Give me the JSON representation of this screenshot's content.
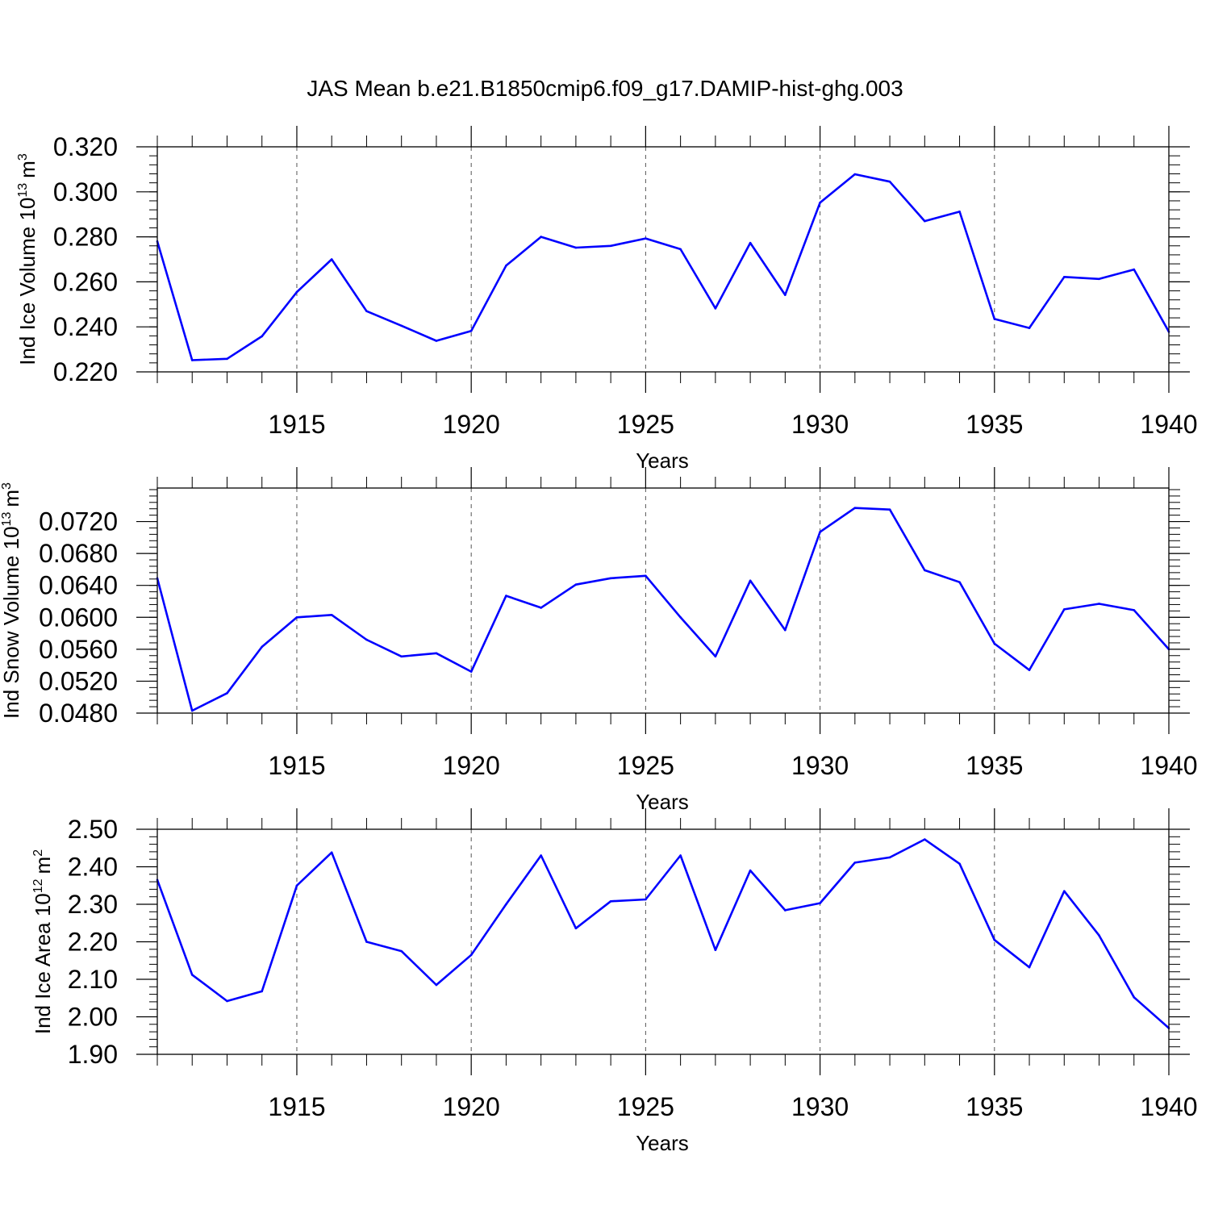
{
  "title": "JAS Mean b.e21.B1850cmip6.f09_g17.DAMIP-hist-ghg.003",
  "colors": {
    "line": "#0000ff",
    "axis": "#000000"
  },
  "chart_data": [
    {
      "type": "line",
      "ylabel_main": "Ind Ice Volume 10",
      "ylabel_exp": "13",
      "ylabel_unit": "m",
      "ylabel_unit_exp": "3",
      "xlabel": "Years",
      "xlim": [
        1911,
        1940
      ],
      "ylim": [
        0.22,
        0.32
      ],
      "yticks": [
        0.22,
        0.24,
        0.26,
        0.28,
        0.3,
        0.32
      ],
      "ytick_labels": [
        "0.220",
        "0.240",
        "0.260",
        "0.280",
        "0.300",
        "0.320"
      ],
      "yminor_step": 0.004,
      "xticks": [
        1915,
        1920,
        1925,
        1930,
        1935,
        1940
      ],
      "xtick_labels": [
        "1915",
        "1920",
        "1925",
        "1930",
        "1935",
        "1940"
      ],
      "x": [
        1911,
        1912,
        1913,
        1914,
        1915,
        1916,
        1917,
        1918,
        1919,
        1920,
        1921,
        1922,
        1923,
        1924,
        1925,
        1926,
        1927,
        1928,
        1929,
        1930,
        1931,
        1932,
        1933,
        1934,
        1935,
        1936,
        1937,
        1938,
        1939,
        1940
      ],
      "values": [
        0.278,
        0.2252,
        0.2258,
        0.2358,
        0.2555,
        0.27,
        0.247,
        0.2405,
        0.2338,
        0.2382,
        0.2672,
        0.28,
        0.2752,
        0.276,
        0.2793,
        0.2745,
        0.2482,
        0.2773,
        0.2542,
        0.2952,
        0.3078,
        0.3045,
        0.287,
        0.2912,
        0.2435,
        0.2395,
        0.2622,
        0.2613,
        0.2655,
        0.2378
      ]
    },
    {
      "type": "line",
      "ylabel_main": "Ind Snow Volume 10",
      "ylabel_exp": "13",
      "ylabel_unit": "m",
      "ylabel_unit_exp": "3",
      "xlabel": "Years",
      "xlim": [
        1911,
        1940
      ],
      "ylim": [
        0.048,
        0.0762
      ],
      "yticks": [
        0.048,
        0.052,
        0.056,
        0.06,
        0.064,
        0.068,
        0.072
      ],
      "ytick_labels": [
        "0.0480",
        "0.0520",
        "0.0560",
        "0.0600",
        "0.0640",
        "0.0680",
        "0.0720"
      ],
      "yminor_step": 0.0008,
      "xticks": [
        1915,
        1920,
        1925,
        1930,
        1935,
        1940
      ],
      "xtick_labels": [
        "1915",
        "1920",
        "1925",
        "1930",
        "1935",
        "1940"
      ],
      "x": [
        1911,
        1912,
        1913,
        1914,
        1915,
        1916,
        1917,
        1918,
        1919,
        1920,
        1921,
        1922,
        1923,
        1924,
        1925,
        1926,
        1927,
        1928,
        1929,
        1930,
        1931,
        1932,
        1933,
        1934,
        1935,
        1936,
        1937,
        1938,
        1939,
        1940
      ],
      "values": [
        0.0649,
        0.0483,
        0.0505,
        0.0563,
        0.06,
        0.0603,
        0.0572,
        0.0551,
        0.0555,
        0.0532,
        0.0627,
        0.0612,
        0.0641,
        0.0649,
        0.0652,
        0.06,
        0.0551,
        0.0646,
        0.0584,
        0.0707,
        0.0737,
        0.0735,
        0.0659,
        0.0644,
        0.0567,
        0.0534,
        0.061,
        0.0617,
        0.0609,
        0.056
      ]
    },
    {
      "type": "line",
      "ylabel_main": "Ind Ice Area 10",
      "ylabel_exp": "12",
      "ylabel_unit": "m",
      "ylabel_unit_exp": "2",
      "xlabel": "Years",
      "xlim": [
        1911,
        1940
      ],
      "ylim": [
        1.9,
        2.5
      ],
      "yticks": [
        1.9,
        2.0,
        2.1,
        2.2,
        2.3,
        2.4,
        2.5
      ],
      "ytick_labels": [
        "1.90",
        "2.00",
        "2.10",
        "2.20",
        "2.30",
        "2.40",
        "2.50"
      ],
      "yminor_step": 0.02,
      "xticks": [
        1915,
        1920,
        1925,
        1930,
        1935,
        1940
      ],
      "xtick_labels": [
        "1915",
        "1920",
        "1925",
        "1930",
        "1935",
        "1940"
      ],
      "x": [
        1911,
        1912,
        1913,
        1914,
        1915,
        1916,
        1917,
        1918,
        1919,
        1920,
        1921,
        1922,
        1923,
        1924,
        1925,
        1926,
        1927,
        1928,
        1929,
        1930,
        1931,
        1932,
        1933,
        1934,
        1935,
        1936,
        1937,
        1938,
        1939,
        1940
      ],
      "values": [
        2.365,
        2.112,
        2.042,
        2.068,
        2.35,
        2.438,
        2.2,
        2.175,
        2.085,
        2.165,
        2.3,
        2.43,
        2.236,
        2.308,
        2.313,
        2.43,
        2.178,
        2.39,
        2.284,
        2.303,
        2.411,
        2.425,
        2.473,
        2.408,
        2.205,
        2.132,
        2.335,
        2.217,
        2.052,
        1.97
      ]
    }
  ]
}
